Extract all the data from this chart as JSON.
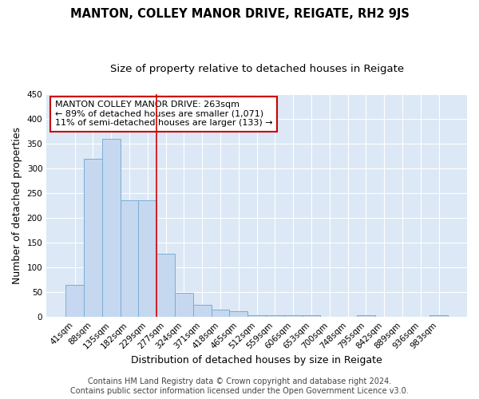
{
  "title": "MANTON, COLLEY MANOR DRIVE, REIGATE, RH2 9JS",
  "subtitle": "Size of property relative to detached houses in Reigate",
  "xlabel": "Distribution of detached houses by size in Reigate",
  "ylabel": "Number of detached properties",
  "bar_labels": [
    "41sqm",
    "88sqm",
    "135sqm",
    "182sqm",
    "229sqm",
    "277sqm",
    "324sqm",
    "371sqm",
    "418sqm",
    "465sqm",
    "512sqm",
    "559sqm",
    "606sqm",
    "653sqm",
    "700sqm",
    "748sqm",
    "795sqm",
    "842sqm",
    "889sqm",
    "936sqm",
    "983sqm"
  ],
  "bar_values": [
    65,
    320,
    360,
    235,
    235,
    127,
    48,
    25,
    15,
    12,
    4,
    4,
    4,
    4,
    0,
    0,
    3,
    0,
    0,
    0,
    3
  ],
  "bar_color": "#c5d8f0",
  "bar_edge_color": "#7aadd4",
  "fig_bg_color": "#ffffff",
  "plot_bg_color": "#dce8f5",
  "grid_color": "#ffffff",
  "red_line_color": "#dd0000",
  "red_line_index": 5,
  "annotation_text": "MANTON COLLEY MANOR DRIVE: 263sqm\n← 89% of detached houses are smaller (1,071)\n11% of semi-detached houses are larger (133) →",
  "annotation_box_facecolor": "#ffffff",
  "annotation_box_edgecolor": "#cc0000",
  "ylim": [
    0,
    450
  ],
  "yticks": [
    0,
    50,
    100,
    150,
    200,
    250,
    300,
    350,
    400,
    450
  ],
  "title_fontsize": 10.5,
  "subtitle_fontsize": 9.5,
  "axis_label_fontsize": 9,
  "tick_fontsize": 7.5,
  "annotation_fontsize": 8,
  "footer_fontsize": 7,
  "footer_line1": "Contains HM Land Registry data © Crown copyright and database right 2024.",
  "footer_line2": "Contains public sector information licensed under the Open Government Licence v3.0."
}
